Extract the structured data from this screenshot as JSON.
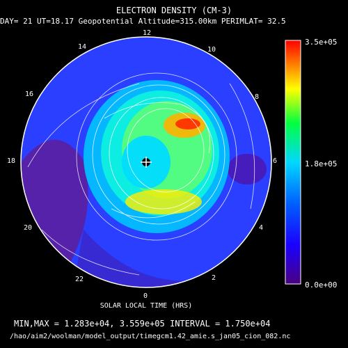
{
  "chart_data": {
    "type": "heatmap",
    "title": "ELECTRON DENSITY (CM-3)",
    "subtitle": "DAY= 21 UT=18.17 Geopotential Altitude=315.00km PERIMLAT= 32.5",
    "xlabel": "SOLAR LOCAL TIME (HRS)",
    "hour_labels": [
      "12",
      "10",
      "8",
      "6",
      "4",
      "2",
      "0",
      "22",
      "20",
      "18",
      "16",
      "14"
    ],
    "colorbar_ticks": [
      "3.5e+05",
      "1.8e+05",
      "0.0e+00"
    ],
    "colorbar_range": [
      0,
      350000
    ],
    "min": 12830,
    "max": 355900,
    "interval": 17500,
    "minmax_text": "MIN,MAX =  1.283e+04, 3.559e+05 INTERVAL =  1.750e+04",
    "file_path": "/hao/aim2/woolman/model_output/timegcm1.42_amie.s_jan05_cion_082.nc"
  }
}
